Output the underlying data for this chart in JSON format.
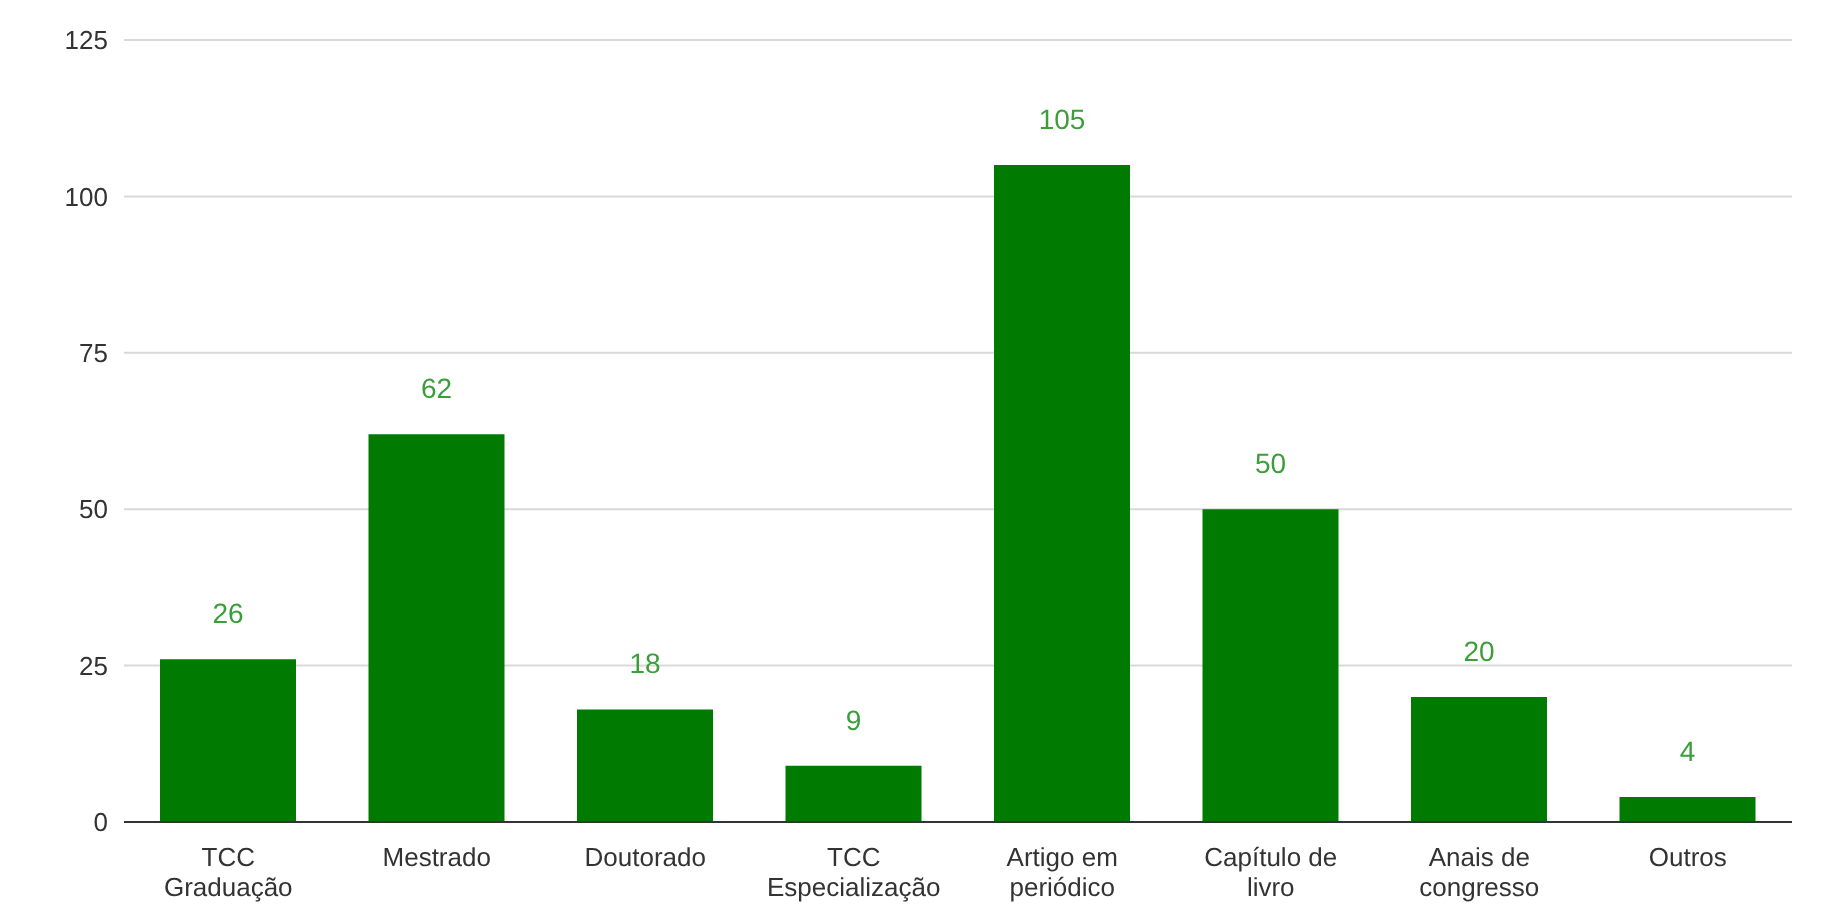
{
  "chart_data": {
    "type": "bar",
    "categories": [
      "TCC Graduação",
      "Mestrado",
      "Doutorado",
      "TCC Especialização",
      "Artigo em periódico",
      "Capítulo de livro",
      "Anais de congresso",
      "Outros"
    ],
    "values": [
      26,
      62,
      18,
      9,
      105,
      50,
      20,
      4
    ],
    "color": "#007a00",
    "ylim": [
      0,
      125
    ],
    "yticks": [
      0,
      25,
      50,
      75,
      100,
      125
    ],
    "grid": "y",
    "data_labels": true
  }
}
